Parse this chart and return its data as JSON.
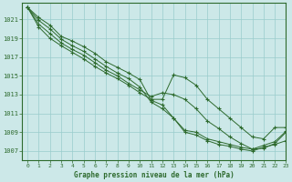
{
  "bg_color": "#cce8e8",
  "grid_color": "#99cccc",
  "line_color": "#2d6a2d",
  "marker_color": "#2d6a2d",
  "title": "Graphe pression niveau de la mer (hPa)",
  "title_color": "#2d6a2d",
  "xlim": [
    -0.5,
    23
  ],
  "ylim": [
    1006.0,
    1022.8
  ],
  "yticks": [
    1007,
    1009,
    1011,
    1013,
    1015,
    1017,
    1019,
    1021
  ],
  "xticks": [
    0,
    1,
    2,
    3,
    4,
    5,
    6,
    7,
    8,
    9,
    10,
    11,
    12,
    13,
    14,
    15,
    16,
    17,
    18,
    19,
    20,
    21,
    22,
    23
  ],
  "series": [
    [
      1022.3,
      1021.2,
      1020.4,
      1019.2,
      1018.7,
      1018.1,
      1017.4,
      1016.5,
      1015.9,
      1015.3,
      1014.6,
      1012.4,
      1011.9,
      1010.5,
      1009.0,
      1008.7,
      1008.1,
      1007.7,
      1007.5,
      1007.2,
      1007.0,
      1007.4,
      1007.7,
      1008.1
    ],
    [
      1022.3,
      1020.9,
      1020.0,
      1018.9,
      1018.2,
      1017.6,
      1016.8,
      1016.0,
      1015.3,
      1014.7,
      1013.8,
      1012.2,
      1011.5,
      1010.5,
      1009.2,
      1009.0,
      1008.3,
      1008.0,
      1007.7,
      1007.4,
      1007.2,
      1007.6,
      1008.0,
      1009.1
    ],
    [
      1022.3,
      1020.5,
      1019.5,
      1018.5,
      1017.8,
      1017.2,
      1016.4,
      1015.6,
      1015.0,
      1014.2,
      1013.5,
      1012.8,
      1013.2,
      1013.0,
      1012.5,
      1011.5,
      1010.2,
      1009.4,
      1008.5,
      1007.8,
      1007.2,
      1007.3,
      1007.8,
      1009.0
    ],
    [
      1022.3,
      1020.2,
      1019.0,
      1018.2,
      1017.5,
      1016.8,
      1016.0,
      1015.3,
      1014.7,
      1014.0,
      1013.2,
      1012.5,
      1012.5,
      1015.1,
      1014.8,
      1014.0,
      1012.5,
      1011.5,
      1010.5,
      1009.5,
      1008.5,
      1008.3,
      1009.5,
      1009.5
    ]
  ]
}
